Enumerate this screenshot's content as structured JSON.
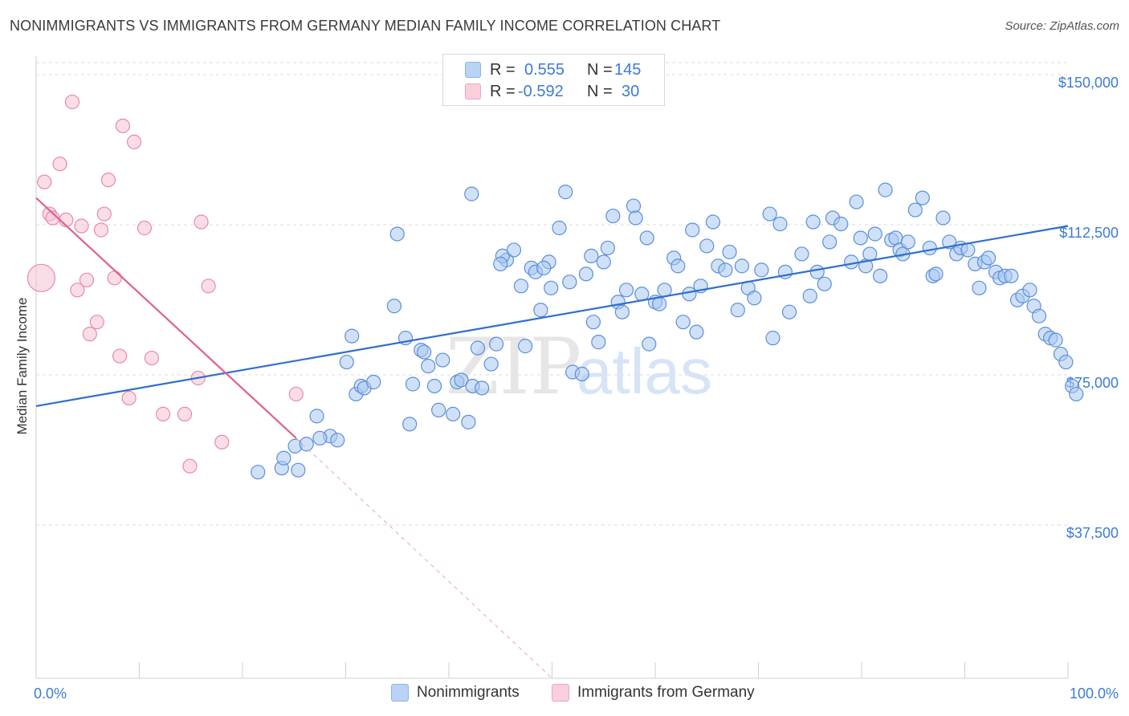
{
  "title": "NONIMMIGRANTS VS IMMIGRANTS FROM GERMANY MEDIAN FAMILY INCOME CORRELATION CHART",
  "source": "Source: ZipAtlas.com",
  "watermark": {
    "zip": "ZIP",
    "atlas": "atlas"
  },
  "colors": {
    "blue_fill": "#a9c8f0",
    "blue_stroke": "#5b8fd9",
    "blue_line": "#2f6fcf",
    "pink_fill": "#f6c3d3",
    "pink_stroke": "#e88aa8",
    "pink_line": "#e0608f",
    "axis_text": "#3d7bd4",
    "grid": "#dddddd"
  },
  "legend": {
    "rows": [
      {
        "r_label": "R = ",
        "r_value": "0.555",
        "n_label": "N = ",
        "n_value": "145",
        "color": "#a9c8f0"
      },
      {
        "r_label": "R = ",
        "r_value": "-0.592",
        "n_label": "N = ",
        "n_value": "30",
        "color": "#f6c3d3"
      }
    ]
  },
  "bottom_legend": [
    {
      "label": "Nonimmigrants",
      "color": "#a9c8f0"
    },
    {
      "label": "Immigrants from Germany",
      "color": "#f6c3d3"
    }
  ],
  "chart_data": {
    "type": "scatter",
    "title": "NONIMMIGRANTS VS IMMIGRANTS FROM GERMANY MEDIAN FAMILY INCOME CORRELATION CHART",
    "xlabel": "",
    "ylabel": "Median Family Income",
    "xlim": [
      0,
      100
    ],
    "ylim": [
      0,
      150000
    ],
    "x_tick_labels": [
      "0.0%",
      "100.0%"
    ],
    "y_ticks": [
      37500,
      75000,
      112500,
      150000
    ],
    "y_tick_labels": [
      "$37,500",
      "$75,000",
      "$112,500",
      "$150,000"
    ],
    "grid": true,
    "legend_position": "top-center",
    "series": [
      {
        "name": "Nonimmigrants",
        "trend": {
          "x": [
            0,
            100
          ],
          "y": [
            68000,
            113000
          ]
        },
        "points": [
          [
            21.5,
            51500
          ],
          [
            23.8,
            52500
          ],
          [
            25.4,
            52000
          ],
          [
            24.0,
            55000
          ],
          [
            25.1,
            58000
          ],
          [
            26.2,
            58500
          ],
          [
            28.5,
            60500
          ],
          [
            27.5,
            60000
          ],
          [
            29.2,
            59500
          ],
          [
            27.2,
            65500
          ],
          [
            30.1,
            79000
          ],
          [
            30.6,
            85500
          ],
          [
            31.0,
            71000
          ],
          [
            31.5,
            73000
          ],
          [
            31.8,
            72500
          ],
          [
            32.7,
            74000
          ],
          [
            34.7,
            93000
          ],
          [
            35.0,
            111000
          ],
          [
            35.8,
            85000
          ],
          [
            36.2,
            63500
          ],
          [
            36.5,
            73500
          ],
          [
            37.3,
            82000
          ],
          [
            37.6,
            81500
          ],
          [
            38.0,
            78000
          ],
          [
            38.6,
            73000
          ],
          [
            39.0,
            67000
          ],
          [
            39.4,
            79500
          ],
          [
            40.4,
            66000
          ],
          [
            40.8,
            74000
          ],
          [
            41.2,
            74500
          ],
          [
            41.9,
            64000
          ],
          [
            42.3,
            73000
          ],
          [
            42.8,
            82500
          ],
          [
            42.2,
            121000
          ],
          [
            43.2,
            72500
          ],
          [
            44.1,
            78500
          ],
          [
            44.6,
            83500
          ],
          [
            45.6,
            104500
          ],
          [
            45.2,
            105500
          ],
          [
            46.3,
            107000
          ],
          [
            47.0,
            98000
          ],
          [
            47.4,
            83000
          ],
          [
            48.0,
            102500
          ],
          [
            48.4,
            101500
          ],
          [
            48.9,
            92000
          ],
          [
            49.7,
            104000
          ],
          [
            49.9,
            97500
          ],
          [
            50.7,
            112500
          ],
          [
            51.3,
            121500
          ],
          [
            51.7,
            99000
          ],
          [
            52.0,
            76500
          ],
          [
            52.9,
            76000
          ],
          [
            53.3,
            101000
          ],
          [
            53.8,
            105500
          ],
          [
            54.0,
            89000
          ],
          [
            54.5,
            84000
          ],
          [
            55.0,
            104000
          ],
          [
            55.4,
            107500
          ],
          [
            55.9,
            115500
          ],
          [
            56.4,
            94000
          ],
          [
            56.8,
            91500
          ],
          [
            57.2,
            97000
          ],
          [
            57.9,
            118000
          ],
          [
            58.1,
            115000
          ],
          [
            59.2,
            110000
          ],
          [
            59.4,
            83500
          ],
          [
            60.0,
            94000
          ],
          [
            60.4,
            93500
          ],
          [
            60.9,
            97000
          ],
          [
            61.8,
            105000
          ],
          [
            62.2,
            103000
          ],
          [
            62.7,
            89000
          ],
          [
            63.3,
            96000
          ],
          [
            63.6,
            112000
          ],
          [
            64.4,
            98000
          ],
          [
            65.0,
            108000
          ],
          [
            65.6,
            114000
          ],
          [
            66.1,
            103000
          ],
          [
            66.8,
            102000
          ],
          [
            67.2,
            106500
          ],
          [
            68.0,
            92000
          ],
          [
            68.4,
            103000
          ],
          [
            69.0,
            97500
          ],
          [
            69.6,
            95000
          ],
          [
            70.3,
            102000
          ],
          [
            71.1,
            116000
          ],
          [
            71.4,
            85000
          ],
          [
            72.1,
            113500
          ],
          [
            72.6,
            101500
          ],
          [
            73.0,
            91500
          ],
          [
            74.2,
            106000
          ],
          [
            75.3,
            114000
          ],
          [
            75.7,
            101500
          ],
          [
            76.4,
            98500
          ],
          [
            76.9,
            109000
          ],
          [
            77.2,
            115000
          ],
          [
            78.0,
            113500
          ],
          [
            79.0,
            104000
          ],
          [
            79.5,
            119000
          ],
          [
            79.9,
            110000
          ],
          [
            80.4,
            103000
          ],
          [
            80.8,
            106000
          ],
          [
            81.3,
            111000
          ],
          [
            81.8,
            100500
          ],
          [
            82.3,
            122000
          ],
          [
            82.9,
            109500
          ],
          [
            83.3,
            110000
          ],
          [
            83.7,
            107000
          ],
          [
            84.0,
            106000
          ],
          [
            84.5,
            109000
          ],
          [
            85.2,
            117000
          ],
          [
            85.9,
            120000
          ],
          [
            86.6,
            107500
          ],
          [
            86.9,
            100500
          ],
          [
            87.2,
            101000
          ],
          [
            87.9,
            115000
          ],
          [
            88.5,
            109000
          ],
          [
            89.2,
            106000
          ],
          [
            89.6,
            107500
          ],
          [
            90.3,
            107000
          ],
          [
            91.0,
            103500
          ],
          [
            91.4,
            97500
          ],
          [
            91.9,
            104000
          ],
          [
            92.3,
            105000
          ],
          [
            93.0,
            101500
          ],
          [
            93.4,
            100000
          ],
          [
            93.9,
            100500
          ],
          [
            94.5,
            100500
          ],
          [
            95.1,
            94500
          ],
          [
            95.6,
            95500
          ],
          [
            96.3,
            97000
          ],
          [
            96.7,
            93000
          ],
          [
            97.2,
            90500
          ],
          [
            97.8,
            86000
          ],
          [
            98.3,
            85000
          ],
          [
            98.8,
            84500
          ],
          [
            99.3,
            81000
          ],
          [
            99.8,
            79000
          ],
          [
            100.4,
            73000
          ],
          [
            100.8,
            71000
          ],
          [
            75.0,
            95500
          ],
          [
            64.0,
            86500
          ],
          [
            58.7,
            96000
          ],
          [
            49.2,
            102500
          ],
          [
            45.0,
            103500
          ]
        ]
      },
      {
        "name": "Immigrants from Germany",
        "trend": {
          "x": [
            0,
            25.2
          ],
          "y": [
            120000,
            60000
          ]
        },
        "trend_extension": {
          "x": [
            25.2,
            50
          ],
          "y": [
            60000,
            0
          ]
        },
        "points": [
          [
            0.5,
            100000
          ],
          [
            0.8,
            124000
          ],
          [
            1.3,
            116000
          ],
          [
            1.6,
            115000
          ],
          [
            2.3,
            128500
          ],
          [
            2.9,
            114500
          ],
          [
            3.5,
            144000
          ],
          [
            4.0,
            97000
          ],
          [
            4.4,
            113000
          ],
          [
            4.9,
            99500
          ],
          [
            5.2,
            86000
          ],
          [
            5.9,
            89000
          ],
          [
            6.6,
            116000
          ],
          [
            6.3,
            112000
          ],
          [
            7.0,
            124500
          ],
          [
            7.6,
            100000
          ],
          [
            8.1,
            80500
          ],
          [
            8.4,
            138000
          ],
          [
            9.0,
            70000
          ],
          [
            9.5,
            134000
          ],
          [
            10.5,
            112500
          ],
          [
            11.2,
            80000
          ],
          [
            12.3,
            66000
          ],
          [
            14.4,
            66000
          ],
          [
            14.9,
            53000
          ],
          [
            15.7,
            75000
          ],
          [
            16.0,
            114000
          ],
          [
            16.7,
            98000
          ],
          [
            18.0,
            59000
          ],
          [
            25.2,
            71000
          ]
        ]
      }
    ]
  }
}
